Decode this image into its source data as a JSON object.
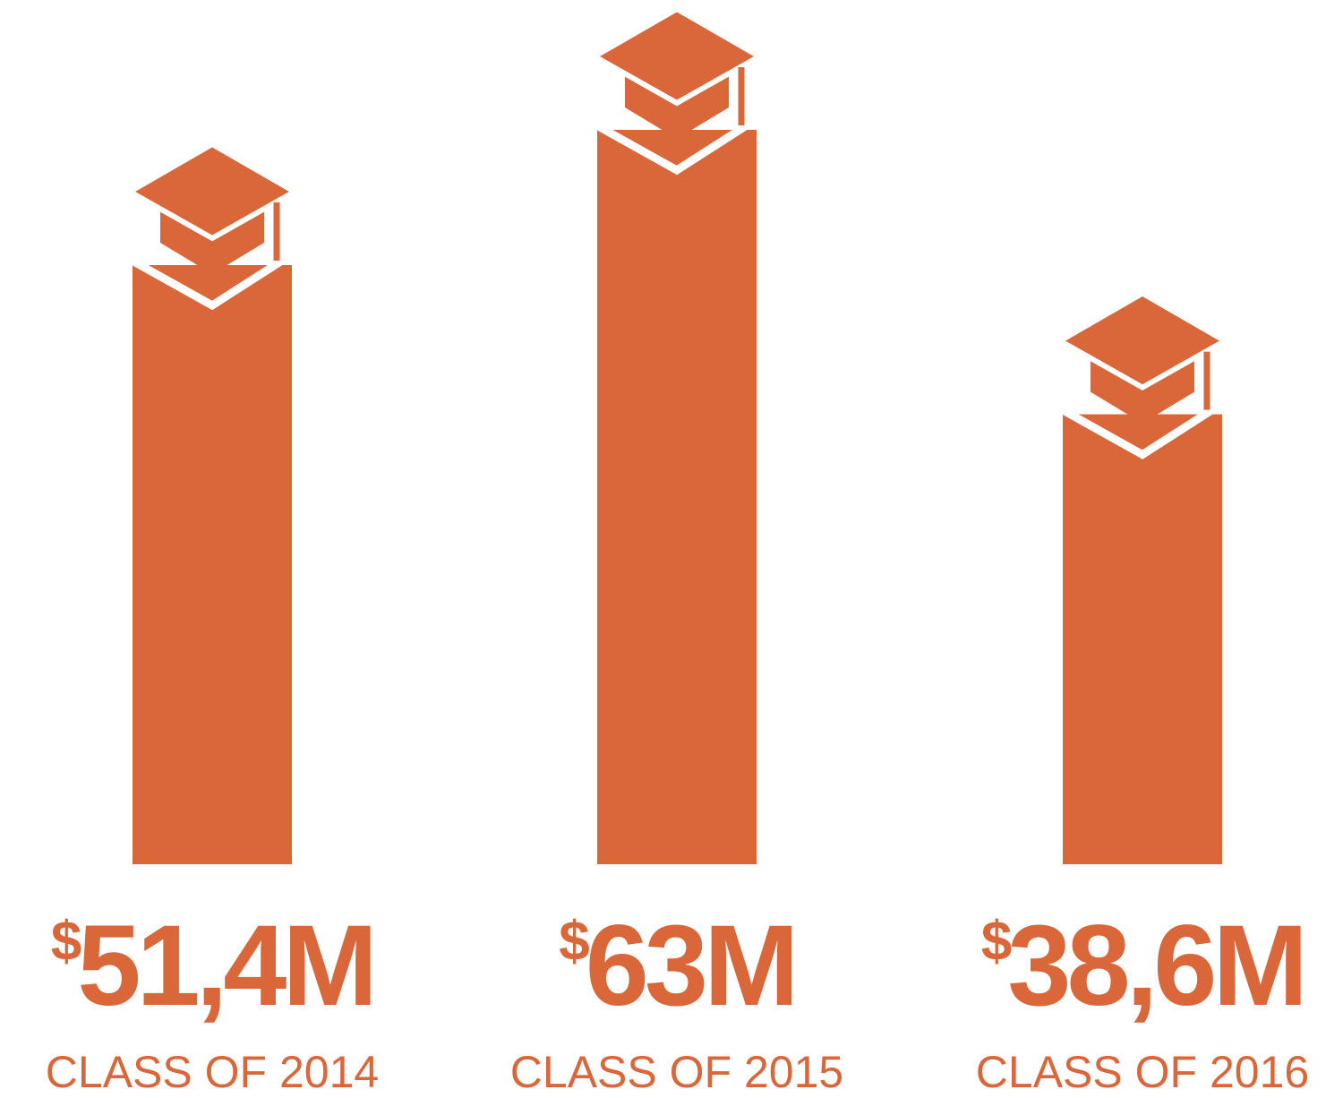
{
  "chart_data": {
    "type": "bar",
    "categories": [
      "CLASS OF 2014",
      "CLASS OF 2015",
      "CLASS OF 2016"
    ],
    "values": [
      51.4,
      63,
      38.6
    ],
    "value_labels": [
      "$51,4M",
      "$63M",
      "$38,6M"
    ],
    "color": "#d9673a"
  }
}
